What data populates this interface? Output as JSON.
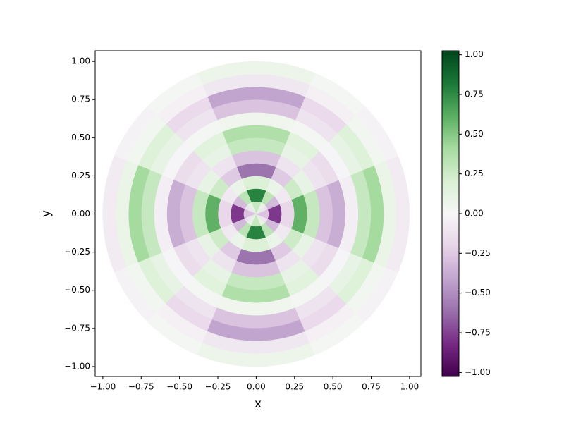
{
  "chart_data": {
    "type": "polar-heatmap",
    "xlabel": "x",
    "ylabel": "y",
    "xlim": [
      -1.05,
      1.074
    ],
    "ylim": [
      -1.065,
      1.07
    ],
    "xticks": [
      {
        "value": -1,
        "label": "−1.00"
      },
      {
        "value": -0.75,
        "label": "−0.75"
      },
      {
        "value": -0.5,
        "label": "−0.50"
      },
      {
        "value": -0.25,
        "label": "−0.25"
      },
      {
        "value": 0,
        "label": "0.00"
      },
      {
        "value": 0.25,
        "label": "0.25"
      },
      {
        "value": 0.5,
        "label": "0.50"
      },
      {
        "value": 0.75,
        "label": "0.75"
      },
      {
        "value": 1,
        "label": "1.00"
      }
    ],
    "yticks": [
      {
        "value": -1,
        "label": "−1.00"
      },
      {
        "value": -0.75,
        "label": "−0.75"
      },
      {
        "value": -0.5,
        "label": "−0.50"
      },
      {
        "value": -0.25,
        "label": "−0.25"
      },
      {
        "value": 0,
        "label": "0.00"
      },
      {
        "value": 0.25,
        "label": "0.25"
      },
      {
        "value": 0.5,
        "label": "0.50"
      },
      {
        "value": 0.75,
        "label": "0.75"
      },
      {
        "value": 1,
        "label": "1.00"
      }
    ],
    "clim": [
      -1.025,
      1.025
    ],
    "colorbar_ticks": [
      {
        "value": -1,
        "label": "−1.00"
      },
      {
        "value": -0.75,
        "label": "−0.75"
      },
      {
        "value": -0.5,
        "label": "−0.50"
      },
      {
        "value": -0.25,
        "label": "−0.25"
      },
      {
        "value": 0,
        "label": "0.00"
      },
      {
        "value": 0.25,
        "label": "0.25"
      },
      {
        "value": 0.5,
        "label": "0.50"
      },
      {
        "value": 0.75,
        "label": "0.75"
      },
      {
        "value": 1,
        "label": "1.00"
      }
    ],
    "colormap": [
      "#40004b",
      "#762a83",
      "#9970ab",
      "#c2a5cf",
      "#e7d4e8",
      "#f7f7f7",
      "#d9f0d3",
      "#a6dba0",
      "#5aae61",
      "#1b7837",
      "#00441b"
    ],
    "r_bins": [
      0,
      0.0833,
      0.1667,
      0.25,
      0.3333,
      0.4167,
      0.5,
      0.5833,
      0.6667,
      0.75,
      0.8333,
      0.9167,
      1
    ],
    "theta_bins": [
      0,
      22.5,
      45,
      67.5,
      90,
      112.5,
      135,
      157.5,
      180,
      202.5,
      225,
      247.5,
      270,
      292.5,
      315,
      337.5,
      360
    ],
    "values": [
      [
        -0.28,
        -0.11,
        0.11,
        0.28,
        0.28,
        0.11,
        -0.11,
        -0.28,
        -0.28,
        -0.11,
        0.11,
        0.28,
        0.28,
        0.11,
        -0.11,
        -0.28
      ],
      [
        -0.78,
        -0.32,
        0.32,
        0.78,
        0.78,
        0.32,
        -0.32,
        -0.78,
        -0.78,
        -0.32,
        0.32,
        0.78,
        0.78,
        0.32,
        -0.32,
        -0.78
      ],
      [
        -0.18,
        -0.08,
        0.08,
        0.18,
        0.18,
        0.08,
        -0.08,
        -0.18,
        -0.18,
        -0.08,
        0.08,
        0.18,
        0.18,
        0.08,
        -0.08,
        -0.18
      ],
      [
        0.6,
        0.25,
        -0.25,
        -0.6,
        -0.6,
        -0.25,
        0.25,
        0.6,
        0.6,
        0.25,
        -0.25,
        -0.6,
        -0.6,
        -0.25,
        0.25,
        0.6
      ],
      [
        0.28,
        0.11,
        -0.11,
        -0.28,
        -0.28,
        -0.11,
        0.11,
        0.28,
        0.28,
        0.11,
        -0.11,
        -0.28,
        -0.28,
        -0.11,
        0.11,
        0.28
      ],
      [
        -0.28,
        -0.11,
        0.11,
        0.28,
        0.28,
        0.11,
        -0.11,
        -0.28,
        -0.28,
        -0.11,
        0.11,
        0.28,
        0.28,
        0.11,
        -0.11,
        -0.28
      ],
      [
        -0.37,
        -0.15,
        0.15,
        0.37,
        0.37,
        0.15,
        -0.15,
        -0.37,
        -0.37,
        -0.15,
        0.15,
        0.37,
        0.37,
        0.15,
        -0.15,
        -0.37
      ],
      [
        -0.05,
        -0.02,
        0.02,
        0.05,
        0.05,
        0.02,
        -0.02,
        -0.05,
        -0.05,
        -0.02,
        0.02,
        0.05,
        0.05,
        0.02,
        -0.02,
        -0.05
      ],
      [
        0.28,
        0.11,
        -0.11,
        -0.28,
        -0.28,
        -0.11,
        0.11,
        0.28,
        0.28,
        0.11,
        -0.11,
        -0.28,
        -0.28,
        -0.11,
        0.11,
        0.28
      ],
      [
        0.41,
        0.17,
        -0.17,
        -0.41,
        -0.41,
        -0.17,
        0.17,
        0.41,
        0.41,
        0.17,
        -0.17,
        -0.41,
        -0.41,
        -0.17,
        0.17,
        0.41
      ],
      [
        0.09,
        0.04,
        -0.04,
        -0.09,
        -0.09,
        -0.04,
        0.04,
        0.09,
        0.09,
        0.04,
        -0.04,
        -0.09,
        -0.09,
        -0.04,
        0.04,
        0.09
      ],
      [
        -0.07,
        -0.03,
        0.03,
        0.07,
        0.07,
        0.03,
        -0.03,
        -0.07,
        -0.07,
        -0.03,
        0.03,
        0.07,
        0.07,
        0.03,
        -0.03,
        -0.07
      ]
    ]
  }
}
